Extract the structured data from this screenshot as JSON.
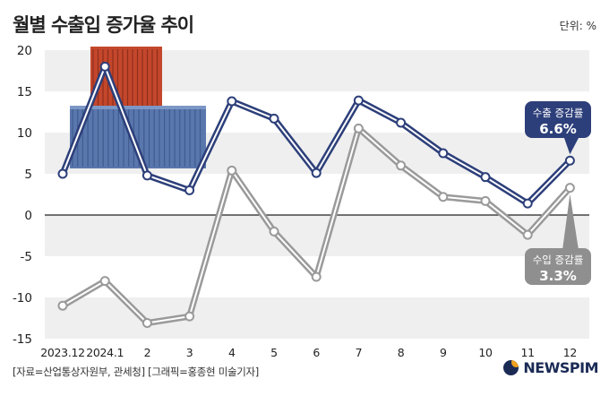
{
  "header": {
    "title": "월별 수출입 증가율 추이",
    "unit": "단위: %"
  },
  "footer": {
    "source": "[자료=산업통상자원부, 관세청] [그래픽=홍종현 미술기자]",
    "logo_text": "NEWSPIM"
  },
  "colors": {
    "export_line": "#2d3f7a",
    "import_line": "#9a9a9a",
    "band": "#efefef",
    "export_box": "#2d3f7a",
    "import_box": "#8f8f8f",
    "container_red": "#c4472c",
    "container_blue": "#5a77ad"
  },
  "chart_data": {
    "type": "line",
    "title": "월별 수출입 증가율 추이",
    "categories": [
      "2023.12",
      "2024.1",
      "2",
      "3",
      "4",
      "5",
      "6",
      "7",
      "8",
      "9",
      "10",
      "11",
      "12"
    ],
    "ylim": [
      -15,
      20
    ],
    "yticks": [
      20,
      15,
      10,
      5,
      0,
      -5,
      -10,
      -15
    ],
    "grid": "alternating horizontal bands",
    "series": [
      {
        "name": "수출 증감률",
        "values": [
          5.0,
          18.0,
          4.8,
          3.0,
          13.8,
          11.7,
          5.1,
          13.9,
          11.2,
          7.5,
          4.6,
          1.4,
          6.6
        ],
        "callout": "6.6%"
      },
      {
        "name": "수입 증감률",
        "values": [
          -11.0,
          -8.0,
          -13.1,
          -12.3,
          5.4,
          -2.0,
          -7.5,
          10.5,
          6.0,
          2.2,
          1.7,
          -2.4,
          3.3
        ],
        "callout": "3.3%"
      }
    ]
  }
}
